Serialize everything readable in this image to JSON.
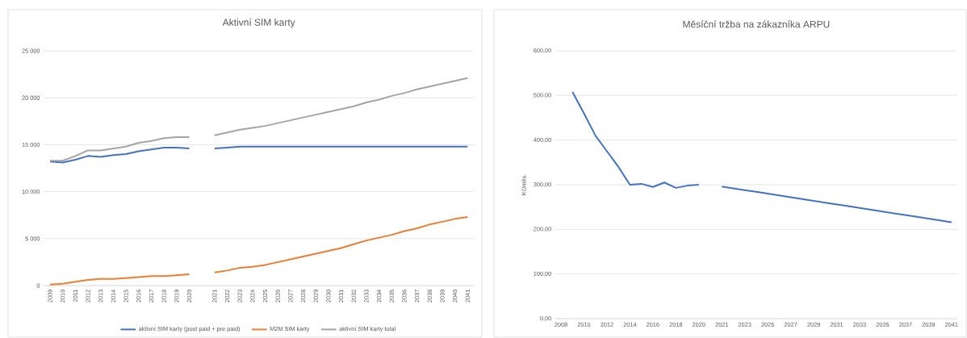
{
  "chart_data": [
    {
      "type": "line",
      "title": "Aktivní SIM karty",
      "categories": [
        "2009",
        "2010",
        "2011",
        "2012",
        "2013",
        "2014",
        "2015",
        "2016",
        "2017",
        "2018",
        "2019",
        "2020",
        null,
        "2021",
        "2022",
        "2023",
        "2024",
        "2025",
        "2026",
        "2027",
        "2028",
        "2029",
        "2030",
        "2031",
        "2032",
        "2033",
        "2034",
        "2035",
        "2036",
        "2037",
        "2038",
        "2039",
        "2040",
        "2041"
      ],
      "series": [
        {
          "name": "aktivní SIM karty (post paid + pre paid)",
          "color": "#4472c4",
          "values": [
            13200,
            13100,
            13400,
            13800,
            13700,
            13900,
            14000,
            14300,
            14500,
            14700,
            14700,
            14600,
            null,
            14600,
            14700,
            14800,
            14800,
            14800,
            14800,
            14800,
            14800,
            14800,
            14800,
            14800,
            14800,
            14800,
            14800,
            14800,
            14800,
            14800,
            14800,
            14800,
            14800,
            14800
          ]
        },
        {
          "name": "M2M SIM karty",
          "color": "#ed7d31",
          "values": [
            100,
            200,
            400,
            600,
            700,
            700,
            800,
            900,
            1000,
            1000,
            1100,
            1200,
            null,
            1400,
            1600,
            1900,
            2000,
            2200,
            2500,
            2800,
            3100,
            3400,
            3700,
            4000,
            4400,
            4800,
            5100,
            5400,
            5800,
            6100,
            6500,
            6800,
            7100,
            7300
          ]
        },
        {
          "name": "aktivní SIM karty total",
          "color": "#a5a5a5",
          "values": [
            13300,
            13300,
            13800,
            14400,
            14400,
            14600,
            14800,
            15200,
            15400,
            15700,
            15800,
            15800,
            null,
            16000,
            16300,
            16600,
            16800,
            17000,
            17300,
            17600,
            17900,
            18200,
            18500,
            18800,
            19100,
            19500,
            19800,
            20200,
            20500,
            20900,
            21200,
            21500,
            21800,
            22100
          ]
        }
      ],
      "ylim": [
        0,
        25000
      ],
      "yticks": [
        0,
        {
          "value": 5000,
          "label": "5 000"
        },
        {
          "value": 10000,
          "label": "10 000"
        },
        {
          "value": 15000,
          "label": "15 000"
        },
        {
          "value": 20000,
          "label": "20 000"
        },
        {
          "value": 25000,
          "label": "25 000"
        }
      ],
      "grid": "y",
      "legend": "bottom"
    },
    {
      "type": "line",
      "title": "Měsíční tržba na zákazníka ARPU",
      "ylabel": "Kč/měs.",
      "categories": [
        "2008",
        null,
        "2010",
        null,
        "2012",
        null,
        "2014",
        null,
        "2016",
        null,
        "2018",
        null,
        "2020",
        null,
        "2021",
        null,
        "2023",
        null,
        "2025",
        null,
        "2027",
        null,
        "2029",
        null,
        "2031",
        null,
        "2033",
        null,
        "2035",
        null,
        "2037",
        null,
        "2039",
        null,
        "2041"
      ],
      "series": [
        {
          "color": "#4472c4",
          "values": [
            null,
            508,
            460,
            410,
            375,
            340,
            300,
            302,
            295,
            305,
            293,
            298,
            300,
            null,
            296,
            292,
            288,
            284,
            280,
            276,
            272,
            268,
            264,
            260,
            256,
            252,
            248,
            244,
            240,
            236,
            232,
            228,
            224,
            220,
            216
          ]
        }
      ],
      "ylim": [
        0,
        600
      ],
      "yticks": [
        {
          "value": 0,
          "label": "0,00"
        },
        {
          "value": 100,
          "label": "100,00"
        },
        {
          "value": 200,
          "label": "200,00"
        },
        {
          "value": 300,
          "label": "300,00"
        },
        {
          "value": 400,
          "label": "400,00"
        },
        {
          "value": 500,
          "label": "500,00"
        },
        {
          "value": 600,
          "label": "600,00"
        }
      ],
      "grid": "y"
    }
  ]
}
